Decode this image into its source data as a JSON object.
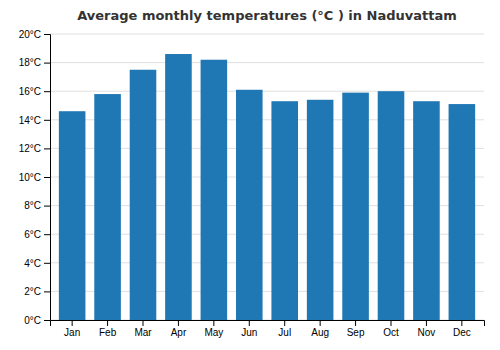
{
  "chart_data": {
    "type": "bar",
    "title": "Average monthly temperatures (°C ) in Naduvattam",
    "categories": [
      "Jan",
      "Feb",
      "Mar",
      "Apr",
      "May",
      "Jun",
      "Jul",
      "Aug",
      "Sep",
      "Oct",
      "Nov",
      "Dec"
    ],
    "values": [
      14.6,
      15.8,
      17.5,
      18.6,
      18.2,
      16.1,
      15.3,
      15.4,
      15.9,
      16.0,
      15.3,
      15.1
    ],
    "ylim": [
      0,
      20
    ],
    "yticks": [
      {
        "value": 0,
        "label": "0°C"
      },
      {
        "value": 2,
        "label": "2°C"
      },
      {
        "value": 4,
        "label": "4°C"
      },
      {
        "value": 6,
        "label": "6°C"
      },
      {
        "value": 8,
        "label": "8°C"
      },
      {
        "value": 10,
        "label": "10°C"
      },
      {
        "value": 12,
        "label": "12°C"
      },
      {
        "value": 14,
        "label": "14°C"
      },
      {
        "value": 16,
        "label": "16°C"
      },
      {
        "value": 18,
        "label": "18°C"
      },
      {
        "value": 20,
        "label": "20°C"
      }
    ],
    "grid": true
  }
}
